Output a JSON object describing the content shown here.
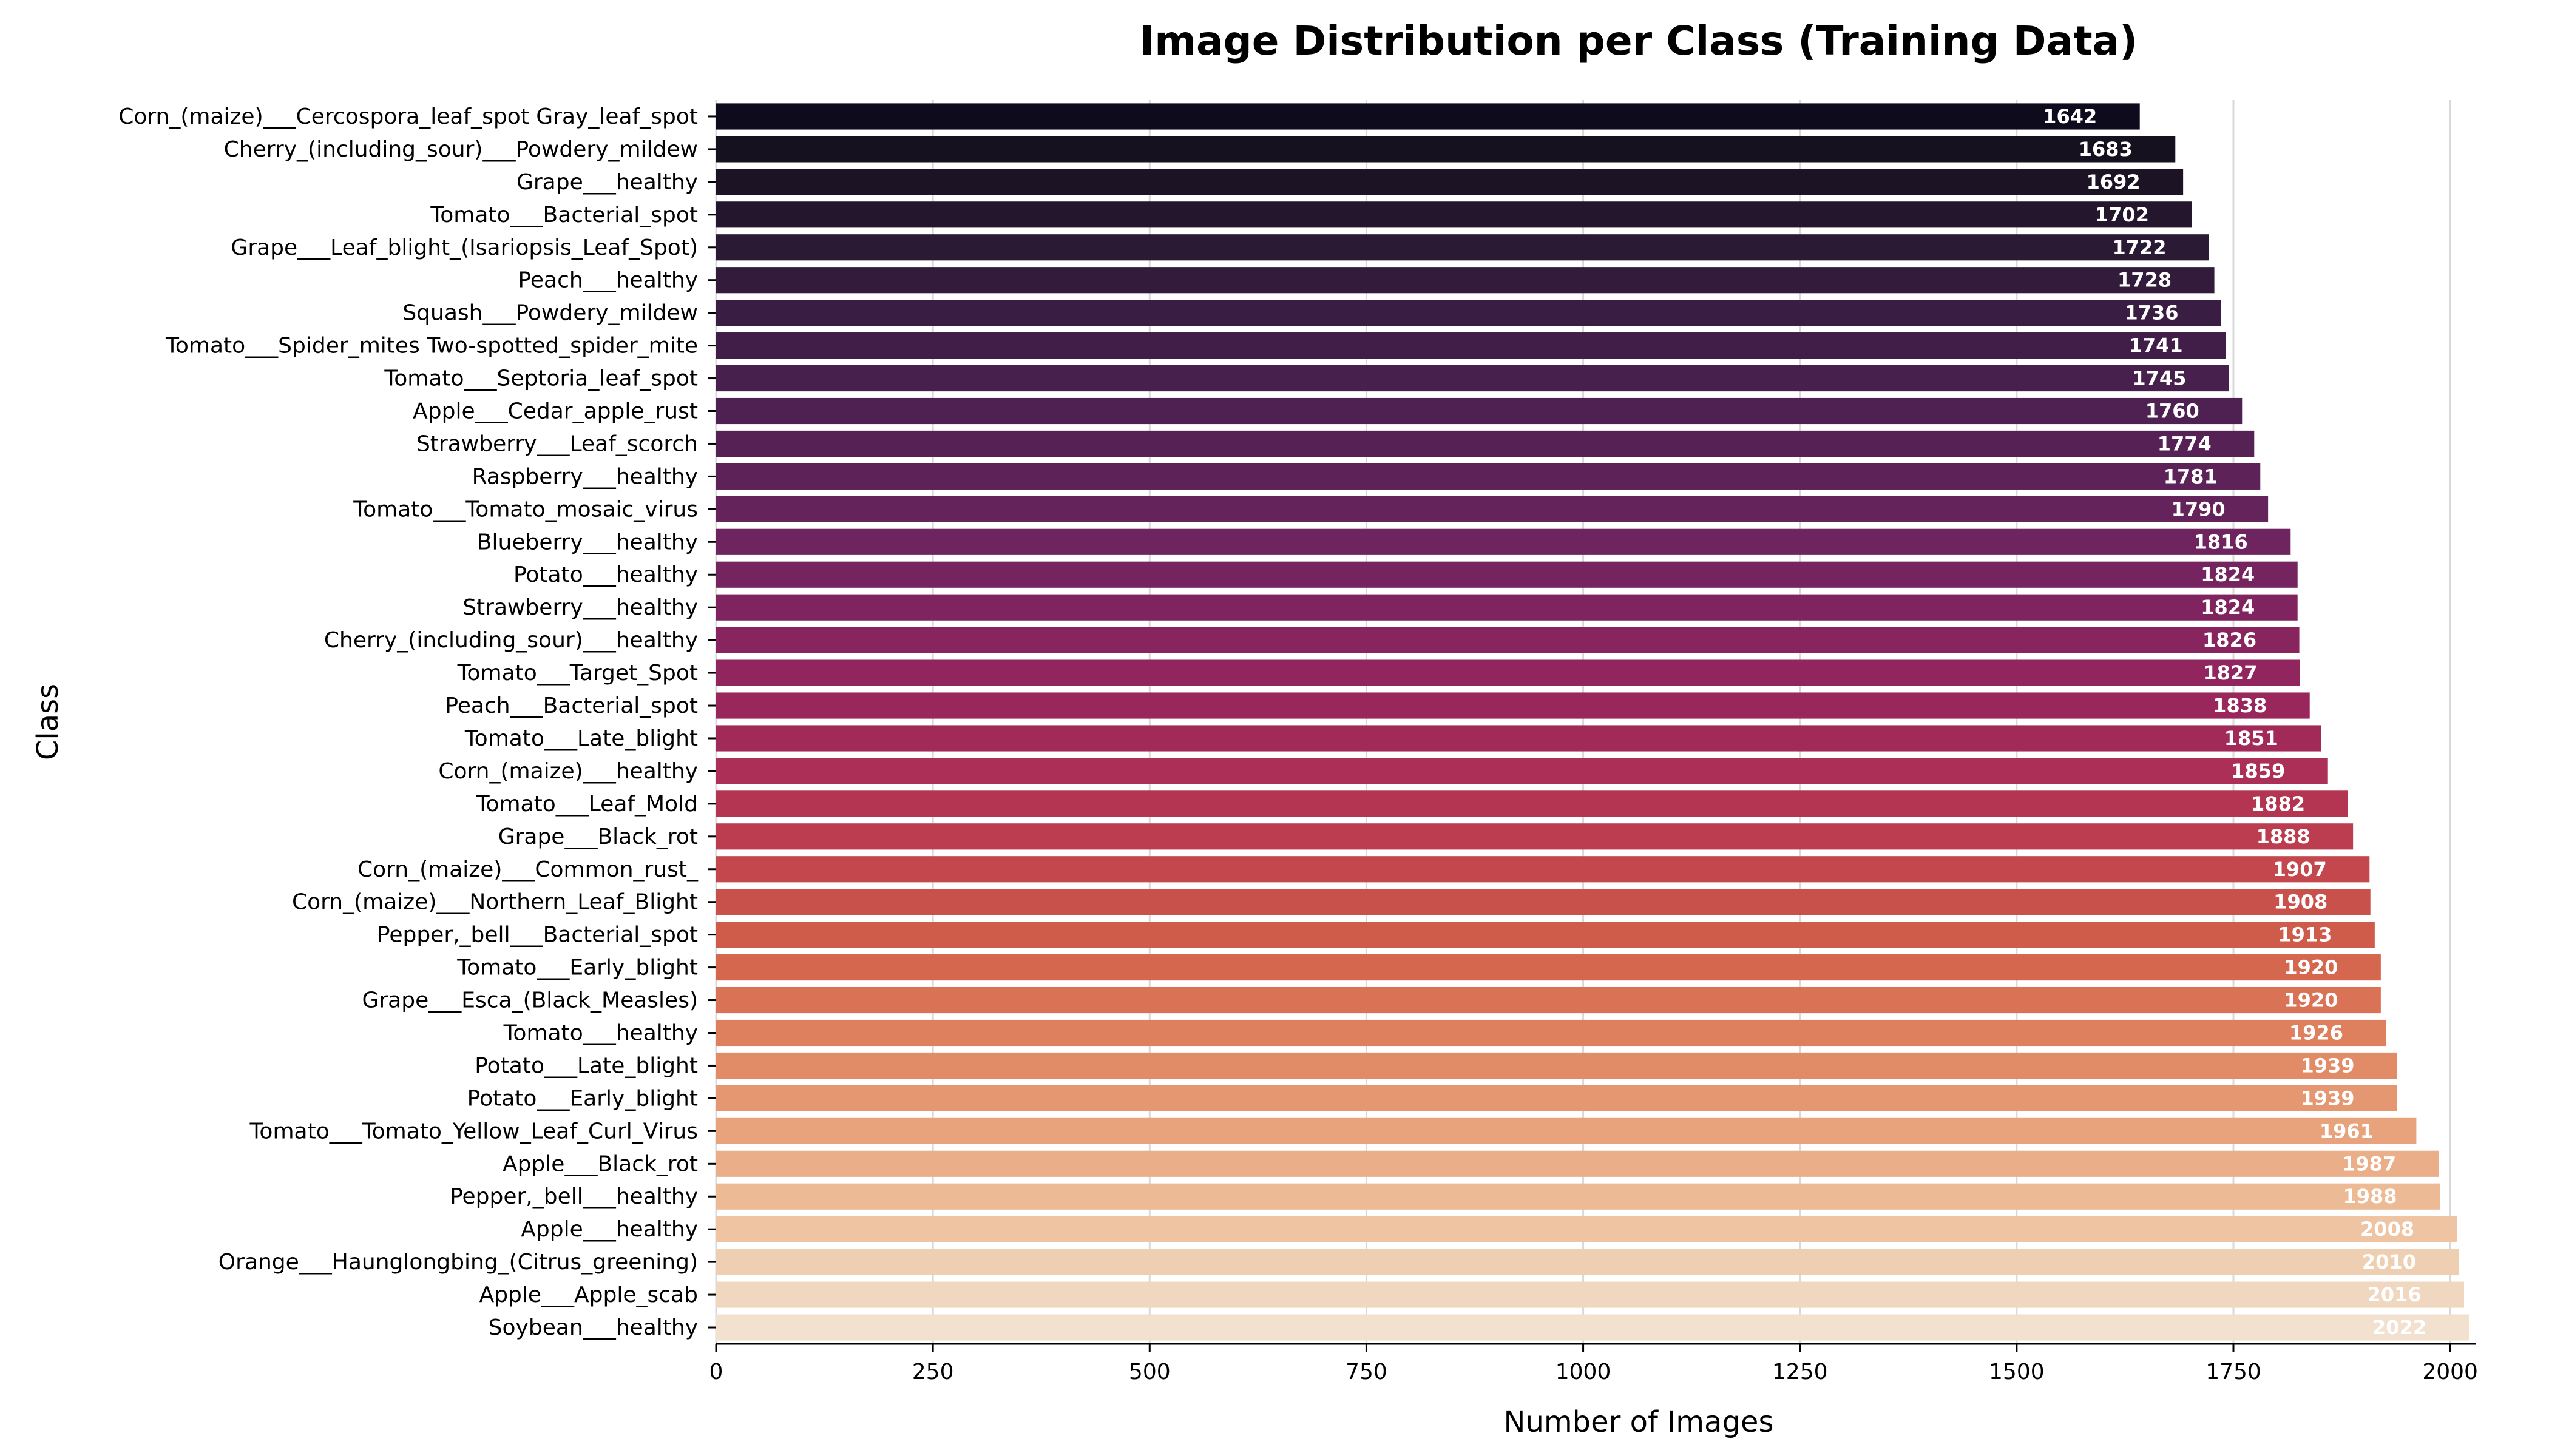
{
  "chart_data": {
    "type": "bar",
    "orientation": "horizontal",
    "title": "Image Distribution per Class (Training Data)",
    "xlabel": "Number of Images",
    "ylabel": "Class",
    "xlim": [
      0,
      2030
    ],
    "xticks": [
      0,
      250,
      500,
      750,
      1000,
      1250,
      1500,
      1750,
      2000
    ],
    "grid": "vertical",
    "palette": "rocket (dark to light)",
    "categories": [
      "Corn_(maize)___Cercospora_leaf_spot Gray_leaf_spot",
      "Cherry_(including_sour)___Powdery_mildew",
      "Grape___healthy",
      "Tomato___Bacterial_spot",
      "Grape___Leaf_blight_(Isariopsis_Leaf_Spot)",
      "Peach___healthy",
      "Squash___Powdery_mildew",
      "Tomato___Spider_mites Two-spotted_spider_mite",
      "Tomato___Septoria_leaf_spot",
      "Apple___Cedar_apple_rust",
      "Strawberry___Leaf_scorch",
      "Raspberry___healthy",
      "Tomato___Tomato_mosaic_virus",
      "Blueberry___healthy",
      "Potato___healthy",
      "Strawberry___healthy",
      "Cherry_(including_sour)___healthy",
      "Tomato___Target_Spot",
      "Peach___Bacterial_spot",
      "Tomato___Late_blight",
      "Corn_(maize)___healthy",
      "Tomato___Leaf_Mold",
      "Grape___Black_rot",
      "Corn_(maize)___Common_rust_",
      "Corn_(maize)___Northern_Leaf_Blight",
      "Pepper,_bell___Bacterial_spot",
      "Tomato___Early_blight",
      "Grape___Esca_(Black_Measles)",
      "Tomato___healthy",
      "Potato___Late_blight",
      "Potato___Early_blight",
      "Tomato___Tomato_Yellow_Leaf_Curl_Virus",
      "Apple___Black_rot",
      "Pepper,_bell___healthy",
      "Apple___healthy",
      "Orange___Haunglongbing_(Citrus_greening)",
      "Apple___Apple_scab",
      "Soybean___healthy"
    ],
    "values": [
      1642,
      1683,
      1692,
      1702,
      1722,
      1728,
      1736,
      1741,
      1745,
      1760,
      1774,
      1781,
      1790,
      1816,
      1824,
      1824,
      1826,
      1827,
      1838,
      1851,
      1859,
      1882,
      1888,
      1907,
      1908,
      1913,
      1920,
      1920,
      1926,
      1939,
      1939,
      1961,
      1987,
      1988,
      2008,
      2010,
      2016,
      2022
    ],
    "colors": [
      "#0d0b1c",
      "#15111f",
      "#1c1425",
      "#24172d",
      "#2b1a34",
      "#321b3b",
      "#391d42",
      "#401e48",
      "#47204e",
      "#4e2152",
      "#562256",
      "#5d2359",
      "#65235c",
      "#6e245e",
      "#76245f",
      "#7f245f",
      "#88245e",
      "#91255d",
      "#9a275b",
      "#a22a59",
      "#ab2f56",
      "#b33552",
      "#bb3d4f",
      "#c3474c",
      "#c9514b",
      "#cf5c4b",
      "#d5674f",
      "#da7355",
      "#de7f5d",
      "#e28b67",
      "#e59771",
      "#e8a37c",
      "#eaaf88",
      "#ecba95",
      "#eec4a2",
      "#efcfb1",
      "#f0d8c0",
      "#f2e1cf"
    ]
  }
}
